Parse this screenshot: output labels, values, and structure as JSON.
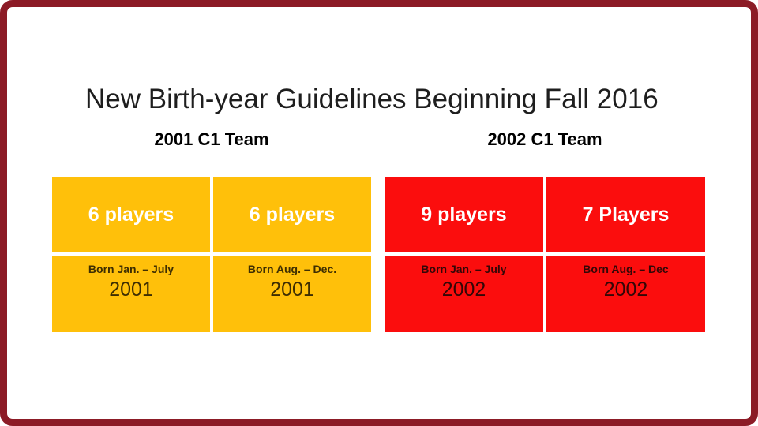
{
  "slide": {
    "title": "New Birth-year Guidelines Beginning Fall 2016"
  },
  "colors": {
    "border_frame": "#8C1B26",
    "team_2001_fill": "#FFC00A",
    "team_2002_fill": "#FB0D0D",
    "players_text": "#FFFFFF",
    "team_2001_detail_text": "#3E2E02",
    "team_2002_detail_text": "#330707"
  },
  "teams": [
    {
      "header": "2001 C1 Team",
      "cells": [
        {
          "players": "6 players",
          "born": "Born Jan. – July",
          "year": "2001"
        },
        {
          "players": "6 players",
          "born": "Born Aug. – Dec.",
          "year": "2001"
        }
      ]
    },
    {
      "header": "2002 C1 Team",
      "cells": [
        {
          "players": "9 players",
          "born": "Born Jan. – July",
          "year": "2002"
        },
        {
          "players": "7 Players",
          "born": "Born Aug. – Dec",
          "year": "2002"
        }
      ]
    }
  ]
}
